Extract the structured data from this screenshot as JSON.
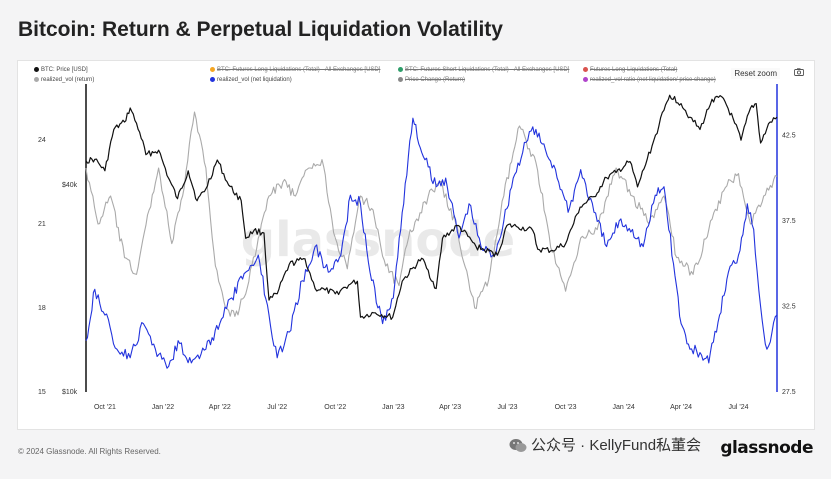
{
  "page": {
    "title": "Bitcoin: Return & Perpetual Liquidation Volatility",
    "copyright": "© 2024 Glassnode. All Rights Reserved.",
    "logo": "glassnode",
    "wechat_text": "公众号 · KellyFund私董会",
    "watermark": "glassnode"
  },
  "toolbar": {
    "reset_zoom_label": "Reset zoom",
    "camera_icon": "camera-icon"
  },
  "legend": [
    {
      "label": "BTC: Price [USD]",
      "color": "#111111",
      "strike": false
    },
    {
      "label": "BTC: Futures Long Liquidations (Total) - All Exchanges [USD]",
      "color": "#f5a623",
      "strike": true
    },
    {
      "label": "BTC: Futures Short Liquidations (Total) - All Exchanges [USD]",
      "color": "#2e9e6a",
      "strike": true
    },
    {
      "label": "Futures Long Liquidations (Total)",
      "color": "#d9534f",
      "strike": true
    },
    {
      "label": "realized_vol (return)",
      "color": "#aaaaaa",
      "strike": false
    },
    {
      "label": "realized_vol (net liquidation)",
      "color": "#2233dd",
      "strike": false
    },
    {
      "label": "Price Change (Return)",
      "color": "#888888",
      "strike": true
    },
    {
      "label": "realized_vol ratio (net liquidation/ price change)",
      "color": "#b044cc",
      "strike": true
    }
  ],
  "chart_data": {
    "type": "line",
    "x_ticks": [
      "Oct '21",
      "Jan '22",
      "Apr '22",
      "Jul '22",
      "Oct '22",
      "Jan '23",
      "Apr '23",
      "Jul '23",
      "Oct '23",
      "Jan '24",
      "Apr '24",
      "Jul '24"
    ],
    "x_range": [
      "2021-09-01",
      "2024-08-31"
    ],
    "left_axis_1": {
      "ticks": [
        "24",
        "21",
        "18",
        "15"
      ],
      "range": [
        15,
        26
      ]
    },
    "left_axis_2": {
      "ticks": [
        "$40k",
        "$10k"
      ],
      "scale": "log"
    },
    "right_axis": {
      "ticks": [
        "42.5",
        "37.5",
        "32.5",
        "27.5"
      ],
      "range": [
        27.5,
        45.5
      ]
    },
    "grid": false,
    "legend_position": "top",
    "series": [
      {
        "name": "BTC: Price [USD]",
        "color": "#111111",
        "axis": "price",
        "points": [
          [
            "2021-09-01",
            47000
          ],
          [
            "2021-09-15",
            47500
          ],
          [
            "2021-10-01",
            44000
          ],
          [
            "2021-10-15",
            58000
          ],
          [
            "2021-11-01",
            61000
          ],
          [
            "2021-11-10",
            67000
          ],
          [
            "2021-11-25",
            57000
          ],
          [
            "2021-12-05",
            49000
          ],
          [
            "2021-12-25",
            50500
          ],
          [
            "2022-01-10",
            41800
          ],
          [
            "2022-01-24",
            36500
          ],
          [
            "2022-02-10",
            44000
          ],
          [
            "2022-02-24",
            36000
          ],
          [
            "2022-03-10",
            39000
          ],
          [
            "2022-03-28",
            47300
          ],
          [
            "2022-04-15",
            40000
          ],
          [
            "2022-05-05",
            36000
          ],
          [
            "2022-05-12",
            28000
          ],
          [
            "2022-05-25",
            29500
          ],
          [
            "2022-06-10",
            29000
          ],
          [
            "2022-06-18",
            18500
          ],
          [
            "2022-07-01",
            19300
          ],
          [
            "2022-07-20",
            23500
          ],
          [
            "2022-08-14",
            24400
          ],
          [
            "2022-08-30",
            20000
          ],
          [
            "2022-09-15",
            19800
          ],
          [
            "2022-10-01",
            19300
          ],
          [
            "2022-10-25",
            20600
          ],
          [
            "2022-11-05",
            21000
          ],
          [
            "2022-11-10",
            16500
          ],
          [
            "2022-12-01",
            17000
          ],
          [
            "2022-12-31",
            16500
          ],
          [
            "2023-01-15",
            21000
          ],
          [
            "2023-02-15",
            24500
          ],
          [
            "2023-03-10",
            20000
          ],
          [
            "2023-03-20",
            28000
          ],
          [
            "2023-04-14",
            30500
          ],
          [
            "2023-05-12",
            26500
          ],
          [
            "2023-06-15",
            25000
          ],
          [
            "2023-06-30",
            30500
          ],
          [
            "2023-07-15",
            30300
          ],
          [
            "2023-08-10",
            29500
          ],
          [
            "2023-08-18",
            26000
          ],
          [
            "2023-09-10",
            25800
          ],
          [
            "2023-10-01",
            27000
          ],
          [
            "2023-10-24",
            34500
          ],
          [
            "2023-11-15",
            37000
          ],
          [
            "2023-12-05",
            42000
          ],
          [
            "2023-12-20",
            43500
          ],
          [
            "2024-01-11",
            46800
          ],
          [
            "2024-01-23",
            39500
          ],
          [
            "2024-02-15",
            52000
          ],
          [
            "2024-03-05",
            66000
          ],
          [
            "2024-03-14",
            73000
          ],
          [
            "2024-04-01",
            69000
          ],
          [
            "2024-04-15",
            63000
          ],
          [
            "2024-05-01",
            58000
          ],
          [
            "2024-05-20",
            71000
          ],
          [
            "2024-06-07",
            71500
          ],
          [
            "2024-06-25",
            60500
          ],
          [
            "2024-07-05",
            54000
          ],
          [
            "2024-07-20",
            67000
          ],
          [
            "2024-07-29",
            69000
          ],
          [
            "2024-08-05",
            53000
          ],
          [
            "2024-08-20",
            61000
          ],
          [
            "2024-08-31",
            63000
          ]
        ]
      },
      {
        "name": "realized_vol (return)",
        "color": "#aaaaaa",
        "axis": "left",
        "points": [
          [
            "2021-09-01",
            23.0
          ],
          [
            "2021-09-20",
            21.0
          ],
          [
            "2021-10-10",
            22.0
          ],
          [
            "2021-11-01",
            19.8
          ],
          [
            "2021-11-20",
            19.2
          ],
          [
            "2021-12-10",
            21.5
          ],
          [
            "2021-12-25",
            23.0
          ],
          [
            "2022-01-15",
            20.3
          ],
          [
            "2022-02-01",
            22.0
          ],
          [
            "2022-02-20",
            25.0
          ],
          [
            "2022-03-10",
            23.0
          ],
          [
            "2022-03-25",
            19.5
          ],
          [
            "2022-04-10",
            18.0
          ],
          [
            "2022-04-25",
            17.7
          ],
          [
            "2022-05-12",
            18.5
          ],
          [
            "2022-06-01",
            20.5
          ],
          [
            "2022-06-18",
            22.0
          ],
          [
            "2022-07-10",
            22.5
          ],
          [
            "2022-07-30",
            22.0
          ],
          [
            "2022-08-20",
            23.0
          ],
          [
            "2022-09-10",
            23.3
          ],
          [
            "2022-10-01",
            20.5
          ],
          [
            "2022-10-20",
            19.4
          ],
          [
            "2022-11-10",
            22.0
          ],
          [
            "2022-11-30",
            21.5
          ],
          [
            "2022-12-20",
            19.5
          ],
          [
            "2023-01-10",
            18.8
          ],
          [
            "2023-01-25",
            20.5
          ],
          [
            "2023-02-20",
            21.8
          ],
          [
            "2023-03-15",
            22.5
          ],
          [
            "2023-04-10",
            21.0
          ],
          [
            "2023-05-10",
            18.0
          ],
          [
            "2023-06-01",
            19.0
          ],
          [
            "2023-06-25",
            22.0
          ],
          [
            "2023-07-20",
            24.5
          ],
          [
            "2023-08-15",
            23.2
          ],
          [
            "2023-09-10",
            20.0
          ],
          [
            "2023-10-01",
            18.6
          ],
          [
            "2023-10-25",
            20.5
          ],
          [
            "2023-11-20",
            20.8
          ],
          [
            "2023-12-20",
            23.0
          ],
          [
            "2024-01-15",
            22.0
          ],
          [
            "2024-02-10",
            21.0
          ],
          [
            "2024-03-05",
            22.0
          ],
          [
            "2024-03-25",
            19.8
          ],
          [
            "2024-04-20",
            19.2
          ],
          [
            "2024-05-15",
            20.8
          ],
          [
            "2024-06-10",
            22.3
          ],
          [
            "2024-07-01",
            22.8
          ],
          [
            "2024-07-20",
            21.0
          ],
          [
            "2024-08-10",
            22.0
          ],
          [
            "2024-08-31",
            22.7
          ]
        ]
      },
      {
        "name": "realized_vol (net liquidation)",
        "color": "#2233dd",
        "axis": "right",
        "points": [
          [
            "2021-09-01",
            30.5
          ],
          [
            "2021-09-15",
            33.5
          ],
          [
            "2021-10-01",
            32.0
          ],
          [
            "2021-10-20",
            30.0
          ],
          [
            "2021-11-10",
            29.5
          ],
          [
            "2021-12-01",
            31.5
          ],
          [
            "2021-12-20",
            30.0
          ],
          [
            "2022-01-10",
            29.0
          ],
          [
            "2022-01-25",
            30.5
          ],
          [
            "2022-02-15",
            29.2
          ],
          [
            "2022-03-10",
            30.0
          ],
          [
            "2022-04-01",
            31.5
          ],
          [
            "2022-04-20",
            33.0
          ],
          [
            "2022-05-12",
            34.5
          ],
          [
            "2022-06-01",
            35.5
          ],
          [
            "2022-06-18",
            32.0
          ],
          [
            "2022-07-01",
            29.5
          ],
          [
            "2022-07-20",
            31.0
          ],
          [
            "2022-08-10",
            34.0
          ],
          [
            "2022-08-30",
            36.0
          ],
          [
            "2022-09-20",
            34.5
          ],
          [
            "2022-10-10",
            35.5
          ],
          [
            "2022-10-25",
            39.0
          ],
          [
            "2022-11-10",
            38.5
          ],
          [
            "2022-11-25",
            34.5
          ],
          [
            "2022-12-15",
            31.5
          ],
          [
            "2023-01-01",
            33.0
          ],
          [
            "2023-01-15",
            38.0
          ],
          [
            "2023-02-01",
            43.5
          ],
          [
            "2023-02-15",
            41.5
          ],
          [
            "2023-03-10",
            39.5
          ],
          [
            "2023-03-25",
            40.0
          ],
          [
            "2023-04-15",
            36.5
          ],
          [
            "2023-05-01",
            38.5
          ],
          [
            "2023-05-20",
            36.0
          ],
          [
            "2023-06-10",
            35.5
          ],
          [
            "2023-06-25",
            37.5
          ],
          [
            "2023-07-10",
            40.0
          ],
          [
            "2023-07-25",
            41.5
          ],
          [
            "2023-08-10",
            43.0
          ],
          [
            "2023-08-25",
            42.0
          ],
          [
            "2023-09-15",
            40.5
          ],
          [
            "2023-10-05",
            38.0
          ],
          [
            "2023-10-25",
            40.5
          ],
          [
            "2023-11-15",
            38.0
          ],
          [
            "2023-12-05",
            36.0
          ],
          [
            "2023-12-25",
            37.5
          ],
          [
            "2024-01-15",
            37.0
          ],
          [
            "2024-02-01",
            36.0
          ],
          [
            "2024-02-20",
            39.0
          ],
          [
            "2024-03-05",
            39.5
          ],
          [
            "2024-03-20",
            35.0
          ],
          [
            "2024-04-01",
            31.5
          ],
          [
            "2024-04-15",
            30.0
          ],
          [
            "2024-05-01",
            29.8
          ],
          [
            "2024-05-15",
            29.2
          ],
          [
            "2024-06-01",
            32.0
          ],
          [
            "2024-06-15",
            34.5
          ],
          [
            "2024-07-01",
            35.5
          ],
          [
            "2024-07-15",
            38.5
          ],
          [
            "2024-07-25",
            37.0
          ],
          [
            "2024-08-05",
            32.5
          ],
          [
            "2024-08-15",
            30.0
          ],
          [
            "2024-08-31",
            32.0
          ]
        ]
      }
    ]
  }
}
